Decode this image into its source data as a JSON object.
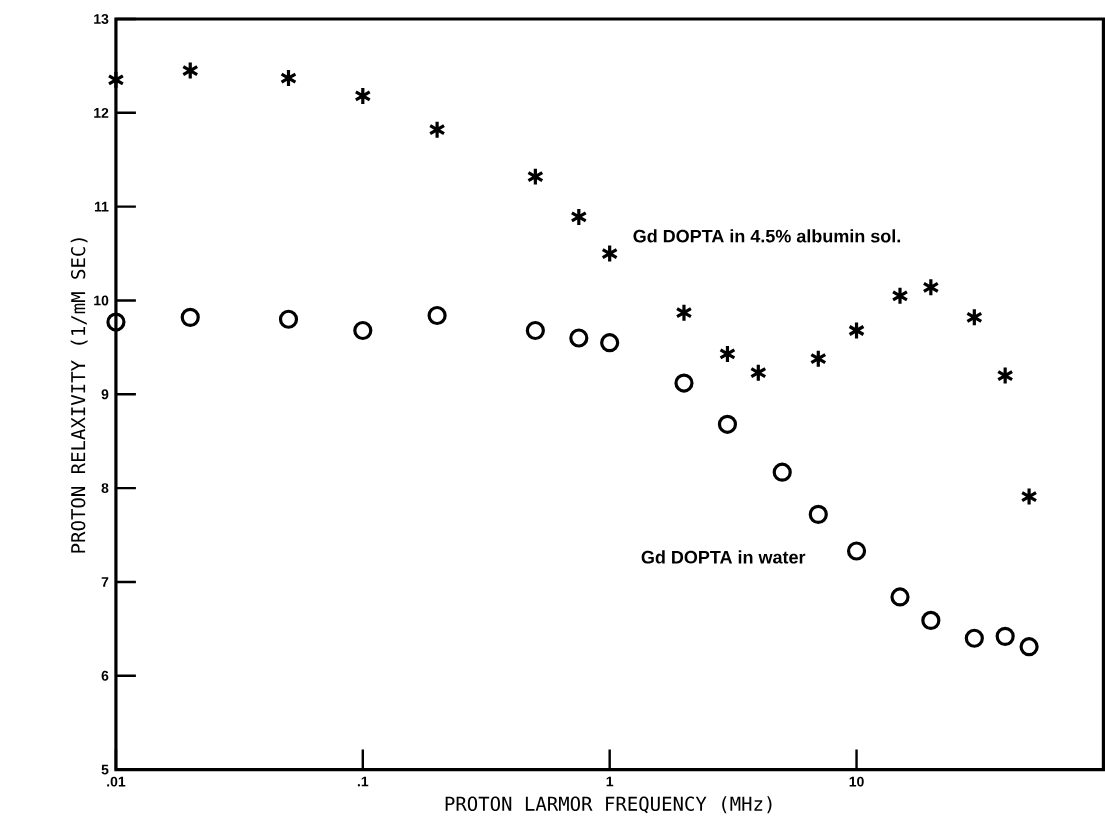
{
  "chart_data": {
    "type": "scatter",
    "xlabel": "PROTON LARMOR FREQUENCY  (MHz)",
    "ylabel": "PROTON RELAXIVITY  (1/mM SEC)",
    "log": "x",
    "xlim": [
      0.01,
      100
    ],
    "ylim": [
      5,
      13
    ],
    "xticks": [
      {
        "value": 0.01,
        "label": ".01"
      },
      {
        "value": 0.1,
        "label": ".1"
      },
      {
        "value": 1,
        "label": "1"
      },
      {
        "value": 10,
        "label": "10"
      }
    ],
    "yticks": [
      5,
      6,
      7,
      8,
      9,
      10,
      11,
      12,
      13
    ],
    "grid": false,
    "legend": false,
    "series": [
      {
        "name": "Gd DOPTA in 4.5% albumin sol.",
        "color": "#000000",
        "marker": "cross",
        "x": [
          0.01,
          0.02,
          0.05,
          0.1,
          0.2,
          0.5,
          0.75,
          1,
          2,
          3,
          4,
          7,
          10,
          15,
          20,
          30,
          40,
          50
        ],
        "values": [
          12.35,
          12.45,
          12.37,
          12.18,
          11.82,
          11.32,
          10.89,
          10.5,
          9.87,
          9.43,
          9.23,
          9.38,
          9.68,
          10.05,
          10.14,
          9.82,
          9.2,
          7.91
        ]
      },
      {
        "name": "Gd DOPTA in water",
        "color": "#000000",
        "marker": "circle",
        "x": [
          0.01,
          0.02,
          0.05,
          0.1,
          0.2,
          0.5,
          0.75,
          1,
          2,
          3,
          5,
          7,
          10,
          15,
          20,
          30,
          40,
          50
        ],
        "values": [
          9.77,
          9.82,
          9.8,
          9.68,
          9.84,
          9.68,
          9.6,
          9.55,
          9.12,
          8.68,
          8.17,
          7.72,
          7.33,
          6.84,
          6.59,
          6.4,
          6.42,
          6.31
        ]
      }
    ]
  }
}
